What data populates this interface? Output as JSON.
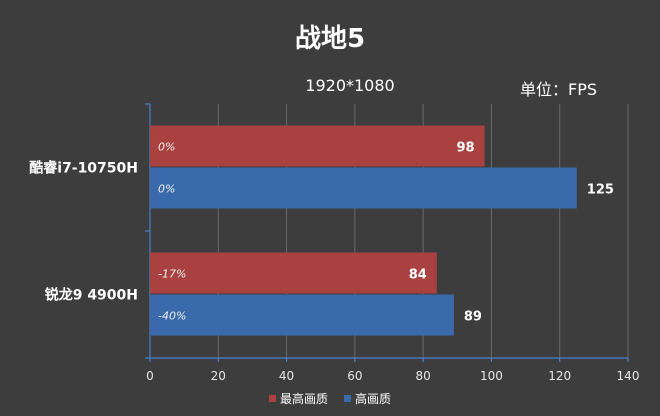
{
  "chart_data": {
    "type": "bar",
    "orientation": "horizontal",
    "title": "战地5",
    "subtitle": "1920*1080",
    "unit_label": "单位：FPS",
    "categories": [
      "酷睿i7-10750H",
      "锐龙9 4900H"
    ],
    "series": [
      {
        "name": "最高画质",
        "color": "#a94141",
        "values": [
          98,
          84
        ],
        "pct_labels": [
          "0%",
          "-17%"
        ]
      },
      {
        "name": "高画质",
        "color": "#3a6aac",
        "values": [
          125,
          89
        ],
        "pct_labels": [
          "0%",
          "-40%"
        ]
      }
    ],
    "xlim": [
      0,
      140
    ],
    "xticks": [
      0,
      20,
      40,
      60,
      80,
      100,
      120,
      140
    ],
    "grid": true,
    "legend_position": "bottom"
  }
}
